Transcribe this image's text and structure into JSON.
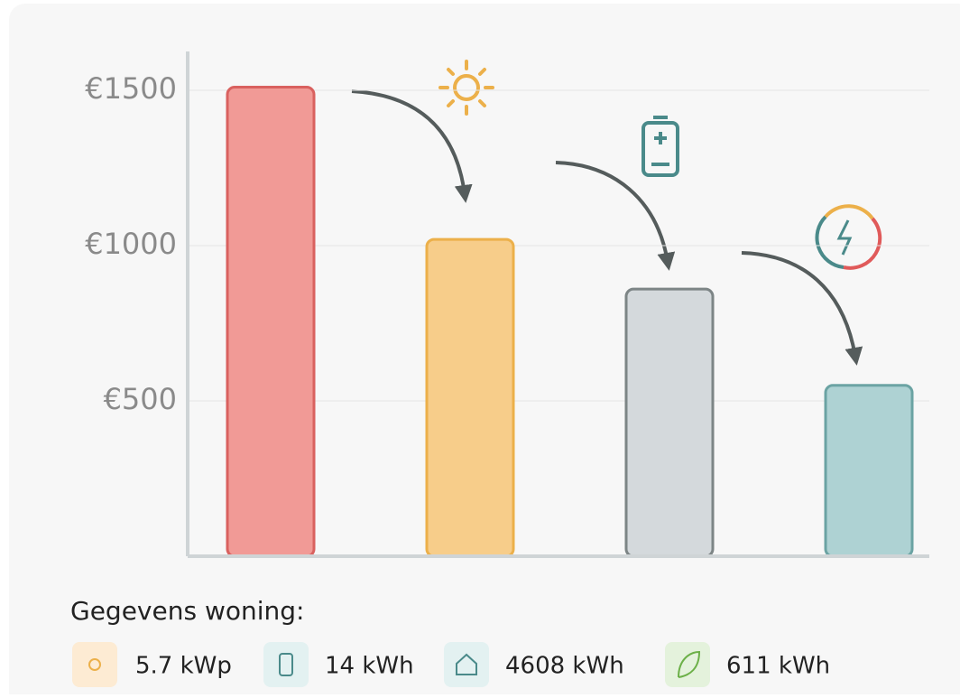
{
  "chart_data": {
    "type": "bar",
    "values": [
      1510,
      1020,
      860,
      550
    ],
    "colors": [
      "#f19a96",
      "#f7cd8a",
      "#d4d9dc",
      "#aed2d3"
    ],
    "edge_colors": [
      "#d9615f",
      "#ecb04a",
      "#7d8586",
      "#6ba3a3"
    ],
    "ylim": [
      0,
      1625
    ],
    "yticks": [
      {
        "value": 500,
        "label": "€500"
      },
      {
        "value": 1000,
        "label": "€1000"
      },
      {
        "value": 1500,
        "label": "€1500"
      }
    ],
    "grid": true,
    "footer": {
      "title": "Gegevens woning:",
      "items": [
        "5.7 kWp",
        "14 kWh",
        "4608 kWh",
        "611 kWh"
      ]
    }
  }
}
